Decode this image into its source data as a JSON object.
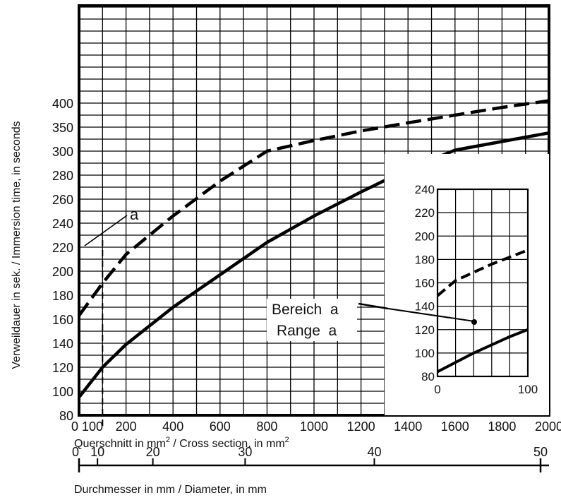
{
  "chart_data": [
    {
      "type": "line",
      "title": "",
      "ylabel": "Verweildauer in sek. / Immersion time, in seconds",
      "xlabel_parts": [
        "Querschnitt in mm",
        "2",
        " / Cross section, in mm",
        "2"
      ],
      "xlim": [
        0,
        2000
      ],
      "ylim": [
        80,
        400
      ],
      "x_ticks": [
        0,
        100,
        200,
        400,
        600,
        800,
        1000,
        1200,
        1400,
        1600,
        1800,
        2000
      ],
      "y_ticks": [
        80,
        100,
        120,
        140,
        160,
        180,
        200,
        220,
        240,
        260,
        280,
        300,
        350,
        400
      ],
      "grid": true,
      "series": [
        {
          "style": "dashed",
          "color": "#000000",
          "x": [
            0,
            100,
            200,
            400,
            600,
            800,
            1000,
            1200,
            1400,
            1600,
            1800,
            2000
          ],
          "y": [
            163,
            190,
            214,
            246,
            275,
            300,
            322,
            342,
            359,
            375,
            391,
            405
          ]
        },
        {
          "style": "solid",
          "color": "#000000",
          "x": [
            0,
            100,
            200,
            400,
            600,
            800,
            1000,
            1200,
            1400,
            1600,
            1800,
            2000
          ],
          "y": [
            95,
            120,
            139,
            170,
            197,
            224,
            246,
            266,
            285,
            302,
            320,
            338
          ]
        }
      ],
      "reference_line": {
        "x": 100,
        "style": "dashed"
      },
      "annotations": [
        {
          "text": "a"
        },
        {
          "text": "Bereich  a"
        },
        {
          "text": "Range  a"
        }
      ]
    },
    {
      "type": "line",
      "title": "inset",
      "xlim": [
        0,
        100
      ],
      "ylim": [
        80,
        240
      ],
      "x_ticks": [
        0,
        100
      ],
      "y_ticks": [
        80,
        100,
        120,
        140,
        160,
        180,
        200,
        220,
        240
      ],
      "grid": true,
      "series": [
        {
          "style": "dashed",
          "color": "#000000",
          "x": [
            0,
            20,
            40,
            60,
            80,
            100
          ],
          "y": [
            149,
            162,
            169,
            176,
            182,
            188
          ]
        },
        {
          "style": "solid",
          "color": "#000000",
          "x": [
            0,
            20,
            40,
            60,
            80,
            100
          ],
          "y": [
            84,
            92,
            100,
            107,
            114,
            120
          ]
        }
      ]
    },
    {
      "type": "axis",
      "xlabel": "Durchmesser in mm / Diameter, in mm",
      "xlim": [
        0,
        50
      ],
      "ticks": [
        0,
        10,
        20,
        30,
        40,
        50
      ],
      "tick_labels": [
        "0",
        "10",
        "20",
        "30",
        "40",
        "50"
      ]
    }
  ]
}
